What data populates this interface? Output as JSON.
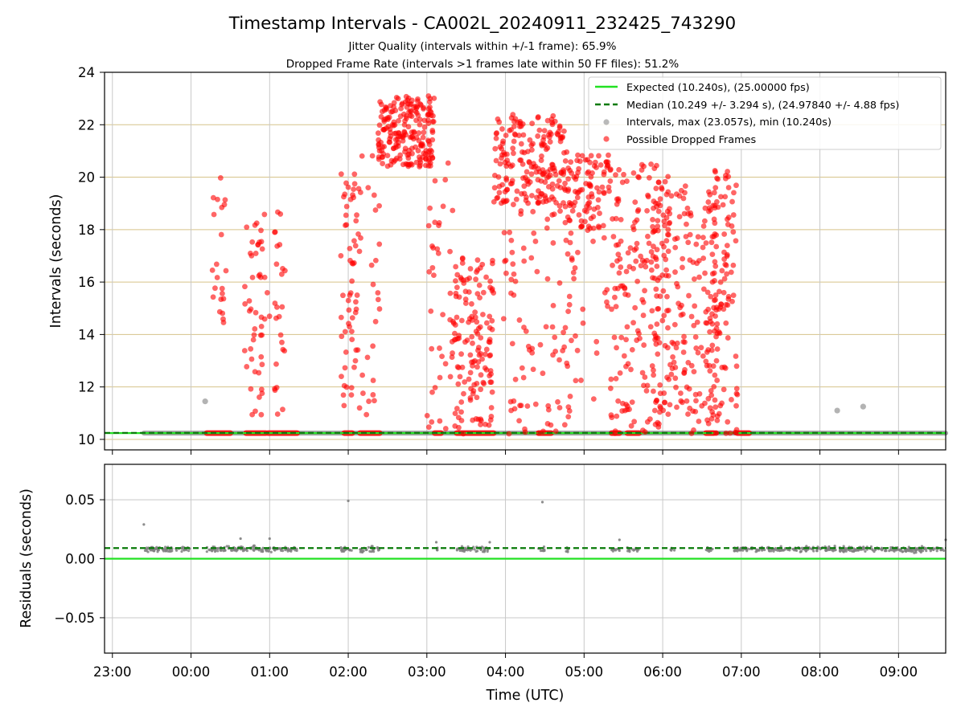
{
  "colors": {
    "expected": "#22e122",
    "median": "#087a08",
    "intervals": "#808080",
    "dropped": "#ff0000",
    "hgrid_top": "#d6c389",
    "grid": "#c8c8c8",
    "median_black": "#444444"
  },
  "chart_data": {
    "title": "Timestamp Intervals - CA002L_20240911_232425_743290",
    "subtitle_1": "Jitter Quality (intervals within +/-1 frame): 65.9%",
    "subtitle_2": "Dropped Frame Rate (intervals >1 frames late within 50 FF files): 51.2%",
    "xlabel": "Time (UTC)",
    "x_tick_labels": [
      "23:00",
      "00:00",
      "01:00",
      "02:00",
      "03:00",
      "04:00",
      "05:00",
      "06:00",
      "07:00",
      "08:00",
      "09:00"
    ],
    "x_tick_hours": [
      -1,
      0,
      1,
      2,
      3,
      4,
      5,
      6,
      7,
      8,
      9
    ],
    "x_range_hours": [
      -1.1,
      9.6
    ],
    "data_span_hours": [
      -0.6,
      9.6
    ],
    "charts": [
      {
        "type": "scatter",
        "ylabel": "Intervals (seconds)",
        "ylim": [
          9.6,
          24.0
        ],
        "yticks": [
          10,
          12,
          14,
          16,
          18,
          20,
          22,
          24
        ],
        "grid": "horizontal",
        "legend_position": "top-right",
        "expected_value": 10.24,
        "median_value": 10.249,
        "legend": {
          "expected": "Expected (10.240s), (25.00000 fps)",
          "median": "Median (10.249 +/- 3.294 s), (24.97840 +/- 4.88 fps)",
          "intervals": "Intervals, max (23.057s), min (10.240s)",
          "dropped": "Possible Dropped Frames"
        },
        "intervals_baseline": 10.24,
        "intervals_outliers": [
          {
            "x": 0.18,
            "y": 11.45
          },
          {
            "x": 8.22,
            "y": 11.1
          },
          {
            "x": 8.55,
            "y": 11.25
          }
        ],
        "dropped_clusters": [
          {
            "x0": 0.25,
            "x1": 0.45,
            "ymin": 13.3,
            "ymax": 20.0,
            "n": 22
          },
          {
            "x0": 0.68,
            "x1": 1.0,
            "ymin": 10.9,
            "ymax": 18.6,
            "n": 50
          },
          {
            "x0": 1.05,
            "x1": 1.2,
            "ymin": 10.9,
            "ymax": 18.8,
            "n": 25
          },
          {
            "x0": 1.9,
            "x1": 2.15,
            "ymin": 10.9,
            "ymax": 20.2,
            "n": 60
          },
          {
            "x0": 2.15,
            "x1": 2.4,
            "ymin": 10.9,
            "ymax": 21.0,
            "n": 25
          },
          {
            "x0": 2.38,
            "x1": 3.1,
            "ymin": 20.4,
            "ymax": 23.1,
            "n": 210
          },
          {
            "x0": 3.0,
            "x1": 3.35,
            "ymin": 10.2,
            "ymax": 21.0,
            "n": 40
          },
          {
            "x0": 3.35,
            "x1": 3.85,
            "ymin": 10.2,
            "ymax": 17.1,
            "n": 140
          },
          {
            "x0": 3.85,
            "x1": 4.75,
            "ymin": 19.0,
            "ymax": 22.4,
            "n": 190
          },
          {
            "x0": 3.95,
            "x1": 4.85,
            "ymin": 10.2,
            "ymax": 19.0,
            "n": 90
          },
          {
            "x0": 4.75,
            "x1": 5.35,
            "ymin": 18.0,
            "ymax": 21.0,
            "n": 100
          },
          {
            "x0": 4.8,
            "x1": 5.35,
            "ymin": 10.2,
            "ymax": 18.0,
            "n": 30
          },
          {
            "x0": 5.35,
            "x1": 6.1,
            "ymin": 10.2,
            "ymax": 20.5,
            "n": 180
          },
          {
            "x0": 5.85,
            "x1": 6.7,
            "ymin": 10.2,
            "ymax": 19.7,
            "n": 200
          },
          {
            "x0": 6.6,
            "x1": 6.95,
            "ymin": 10.2,
            "ymax": 20.3,
            "n": 100
          }
        ],
        "dropped_baseline_segments": [
          [
            0.2,
            0.5
          ],
          [
            0.7,
            0.95
          ],
          [
            0.98,
            1.35
          ],
          [
            1.95,
            2.05
          ],
          [
            2.15,
            2.4
          ],
          [
            3.1,
            3.18
          ],
          [
            3.38,
            3.85
          ],
          [
            4.42,
            4.58
          ],
          [
            5.35,
            5.45
          ],
          [
            5.55,
            5.7
          ],
          [
            6.55,
            6.65
          ],
          [
            6.95,
            7.1
          ]
        ]
      },
      {
        "type": "scatter",
        "ylabel": "Residuals (seconds)",
        "ylim": [
          -0.08,
          0.08
        ],
        "yticks": [
          -0.05,
          0.0,
          0.05
        ],
        "ytick_labels": [
          "−0.05",
          "0.00",
          "0.05"
        ],
        "grid": "both",
        "expected_value": 0.0,
        "median_value": 0.009,
        "residual_typical": 0.008,
        "residual_outliers": [
          {
            "x": -0.6,
            "y": 0.029
          },
          {
            "x": 2.0,
            "y": 0.049
          },
          {
            "x": 4.47,
            "y": 0.048
          },
          {
            "x": 1.0,
            "y": 0.017
          },
          {
            "x": 0.63,
            "y": 0.017
          },
          {
            "x": 5.45,
            "y": 0.016
          },
          {
            "x": 3.12,
            "y": 0.014
          },
          {
            "x": 3.8,
            "y": 0.014
          },
          {
            "x": 9.6,
            "y": 0.016
          }
        ],
        "residual_clusters": [
          [
            -0.6,
            0.0
          ],
          [
            0.2,
            1.35
          ],
          [
            1.9,
            2.05
          ],
          [
            2.15,
            2.4
          ],
          [
            3.1,
            3.15
          ],
          [
            3.38,
            3.8
          ],
          [
            4.42,
            4.5
          ],
          [
            4.75,
            4.8
          ],
          [
            5.35,
            5.45
          ],
          [
            5.55,
            5.7
          ],
          [
            6.1,
            6.15
          ],
          [
            6.55,
            6.65
          ],
          [
            6.9,
            9.6
          ]
        ]
      }
    ]
  }
}
